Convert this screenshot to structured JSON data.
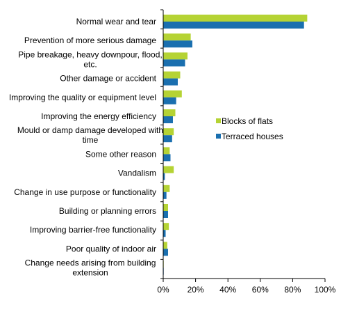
{
  "chart_data": {
    "type": "bar",
    "orientation": "horizontal",
    "categories": [
      "Normal wear and tear",
      "Prevention of more serious damage",
      "Pipe breakage, heavy downpour, flood, etc.",
      "Other damage or accident",
      "Improving the quality or equipment level",
      "Improving the energy efficiency",
      "Mould or damp damage developed with time",
      "Some other reason",
      "Vandalism",
      "Change in use purpose or functionality",
      "Building or planning errors",
      "Improving barrier-free functionality",
      "Poor quality of indoor air",
      "Change needs arising from building extension"
    ],
    "category_lines": [
      [
        "Normal wear and tear"
      ],
      [
        "Prevention of more serious damage"
      ],
      [
        "Pipe breakage, heavy downpour, flood,",
        "etc."
      ],
      [
        "Other damage or accident"
      ],
      [
        "Improving the quality or equipment level"
      ],
      [
        "Improving the energy efficiency"
      ],
      [
        "Mould or damp damage developed with",
        "time"
      ],
      [
        "Some other reason"
      ],
      [
        "Vandalism"
      ],
      [
        "Change in use purpose or functionality"
      ],
      [
        "Building or planning errors"
      ],
      [
        "Improving barrier-free functionality"
      ],
      [
        "Poor quality of indoor air"
      ],
      [
        "Change needs arising from building",
        "extension"
      ]
    ],
    "series": [
      {
        "name": "Blocks of flats",
        "color": "#b5d334",
        "values": [
          89,
          17,
          15,
          10.5,
          11.5,
          7.5,
          6.5,
          4,
          6.5,
          4,
          3,
          3.5,
          2.5,
          0.3
        ]
      },
      {
        "name": "Terraced houses",
        "color": "#1a6faf",
        "values": [
          87,
          18,
          13.5,
          9,
          8,
          6,
          5.5,
          4.5,
          1,
          2,
          3,
          1.5,
          3,
          0.3
        ]
      }
    ],
    "x_ticks": [
      "0%",
      "20%",
      "40%",
      "60%",
      "80%",
      "100%"
    ],
    "xlim": [
      0,
      100
    ],
    "grid": false,
    "legend_position": "right-middle"
  }
}
